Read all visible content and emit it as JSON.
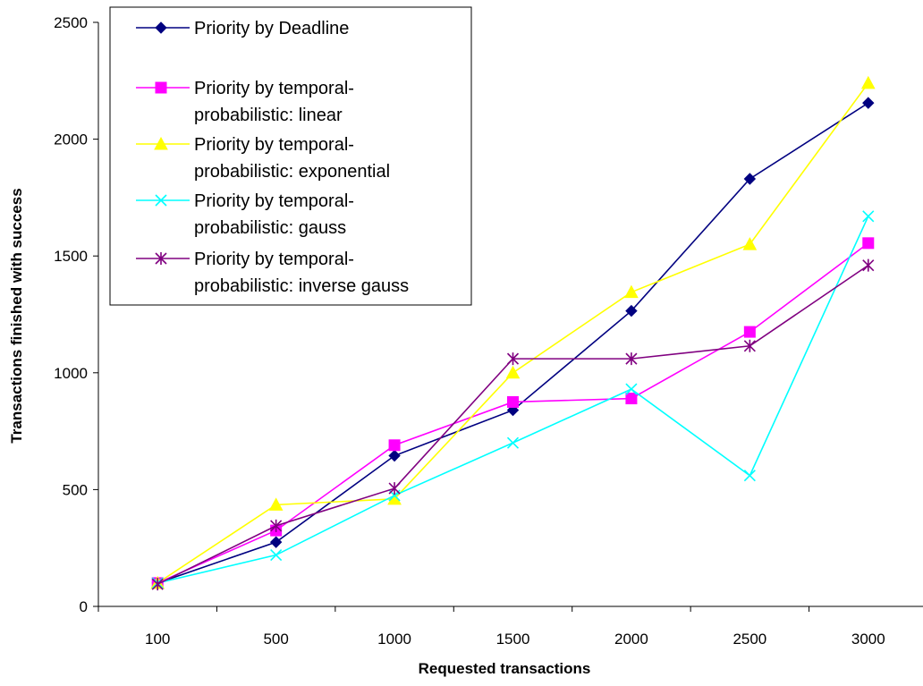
{
  "chart_data": {
    "type": "line",
    "title": "",
    "xlabel": "Requested transactions",
    "ylabel": "Transactions finished with success",
    "categories": [
      "100",
      "500",
      "1000",
      "1500",
      "2000",
      "2500",
      "3000"
    ],
    "ylim": [
      0,
      2500
    ],
    "yticks": [
      0,
      500,
      1000,
      1500,
      2000,
      2500
    ],
    "ytick_labels": [
      "0",
      "500",
      "1000",
      "1500",
      "2000",
      "2500"
    ],
    "grid": false,
    "legend_position": "top-left",
    "series": [
      {
        "name_lines": [
          "Priority by Deadline"
        ],
        "color": "#000080",
        "marker": "diamond",
        "values": [
          100,
          275,
          645,
          840,
          1265,
          1830,
          2155
        ]
      },
      {
        "name_lines": [
          "Priority by temporal-",
          "probabilistic: linear"
        ],
        "color": "#FF00FF",
        "marker": "square",
        "values": [
          100,
          325,
          690,
          875,
          890,
          1175,
          1555
        ]
      },
      {
        "name_lines": [
          "Priority by temporal-",
          "probabilistic: exponential"
        ],
        "color": "#FFFF00",
        "marker": "triangle",
        "values": [
          100,
          435,
          460,
          1000,
          1345,
          1550,
          2240
        ]
      },
      {
        "name_lines": [
          "Priority by temporal-",
          "probabilistic: gauss"
        ],
        "color": "#00FFFF",
        "marker": "x",
        "values": [
          100,
          220,
          475,
          700,
          930,
          560,
          1670
        ]
      },
      {
        "name_lines": [
          "Priority by temporal-",
          "probabilistic: inverse gauss"
        ],
        "color": "#800080",
        "marker": "star",
        "values": [
          95,
          345,
          505,
          1060,
          1060,
          1115,
          1460
        ]
      }
    ]
  }
}
